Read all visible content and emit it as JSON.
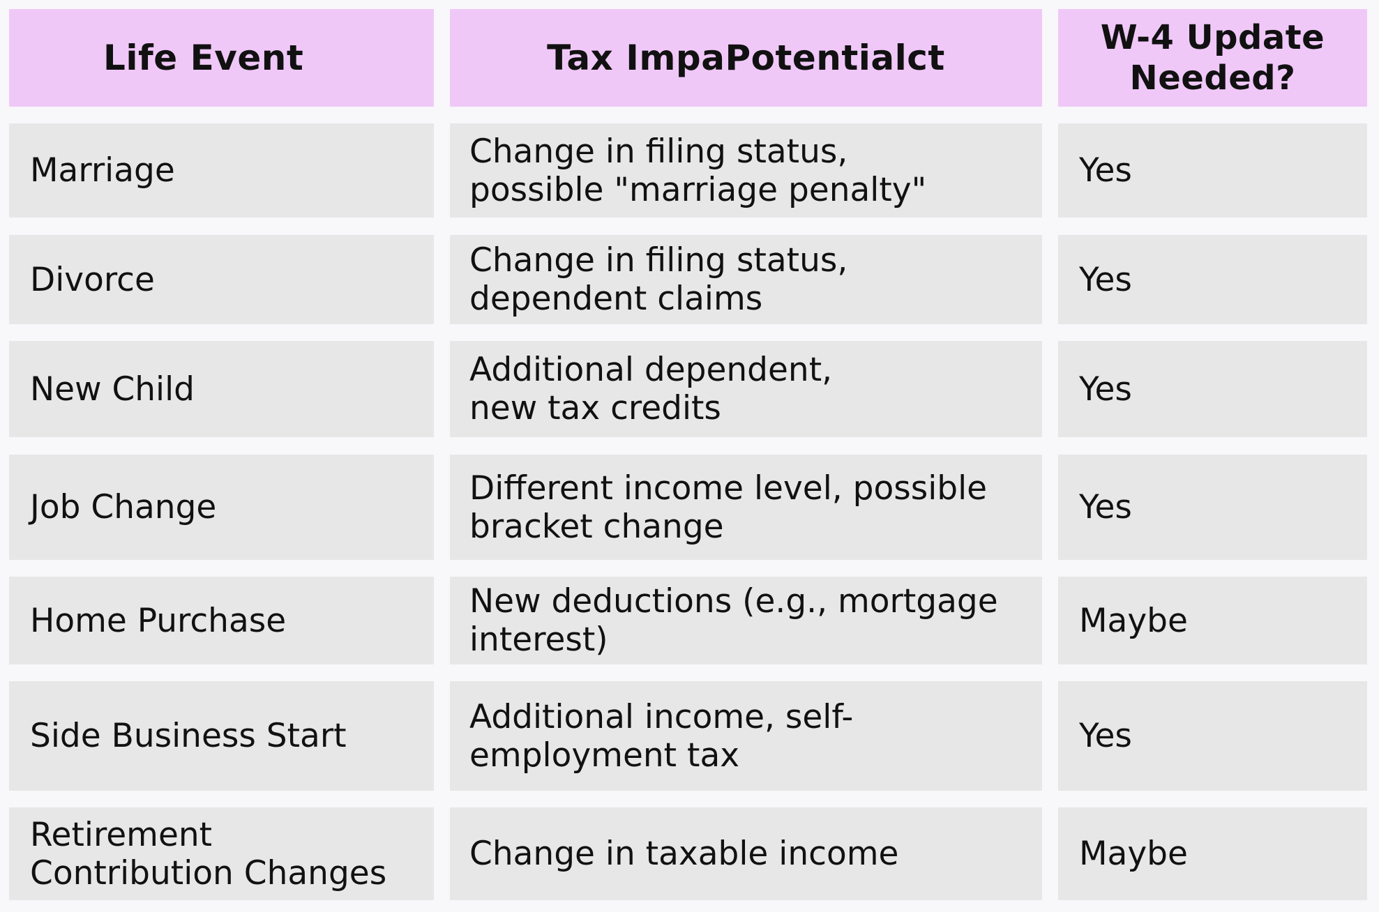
{
  "headers": {
    "life_event": "Life Event",
    "tax_impact": "Tax ImpaPotentialct",
    "w4_update": "W-4 Update\nNeeded?"
  },
  "rows": [
    {
      "event": "Marriage",
      "impact": "Change in filing status,\npossible \"marriage penalty\"",
      "update": "Yes"
    },
    {
      "event": "Divorce",
      "impact": "Change in filing status,\ndependent claims",
      "update": "Yes"
    },
    {
      "event": "New Child",
      "impact": "Additional dependent,\nnew tax credits",
      "update": "Yes"
    },
    {
      "event": "Job Change",
      "impact": "Different income level, possible\nbracket change",
      "update": "Yes"
    },
    {
      "event": "Home Purchase",
      "impact": "New deductions (e.g., mortgage\ninterest)",
      "update": "Maybe"
    },
    {
      "event": "Side Business Start",
      "impact": "Additional income, self-\nemployment tax",
      "update": "Yes"
    },
    {
      "event": "Retirement\nContribution Changes",
      "impact": "Change in taxable income",
      "update": "Maybe"
    }
  ]
}
